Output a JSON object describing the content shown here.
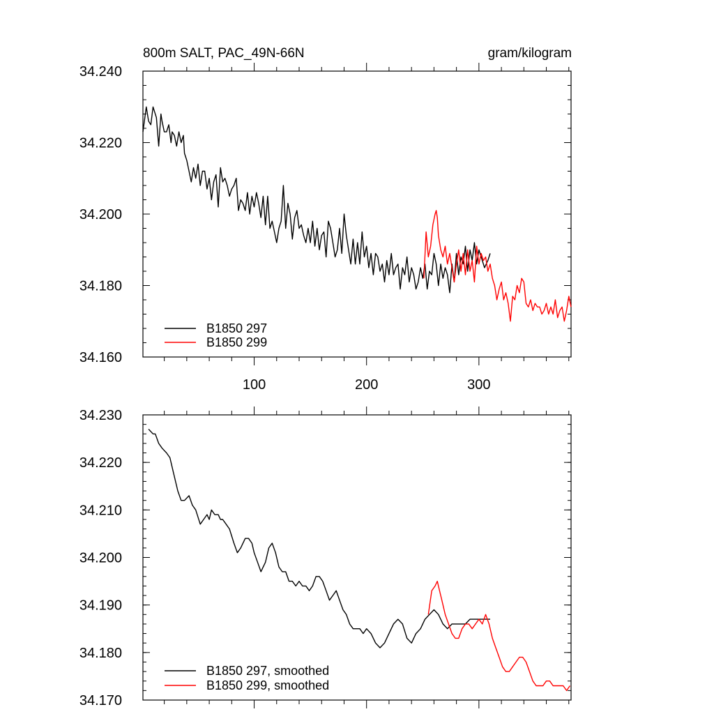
{
  "chart_data": [
    {
      "type": "line",
      "title_left": "800m SALT, PAC_49N-66N",
      "title_right": "gram/kilogram",
      "xlabel": "",
      "ylabel": "",
      "xlim": [
        1,
        382
      ],
      "ylim": [
        34.16,
        34.24
      ],
      "x_ticks": [
        100,
        200,
        300
      ],
      "x_tick_labels": [
        "100",
        "200",
        "300"
      ],
      "y_ticks": [
        34.16,
        34.18,
        34.2,
        34.22,
        34.24
      ],
      "y_tick_labels": [
        "34.160",
        "34.180",
        "34.200",
        "34.220",
        "34.240"
      ],
      "grid": false,
      "legend_position": "bottom-left",
      "series": [
        {
          "name": "B1850 297",
          "color": "#000000",
          "x": [
            1,
            4,
            6,
            8,
            10,
            11,
            13,
            15,
            17,
            18,
            20,
            22,
            24,
            26,
            27,
            29,
            31,
            33,
            35,
            37,
            38,
            40,
            42,
            44,
            46,
            48,
            50,
            52,
            54,
            56,
            58,
            60,
            62,
            64,
            66,
            68,
            70,
            72,
            74,
            76,
            78,
            80,
            82,
            84,
            86,
            88,
            90,
            92,
            94,
            96,
            98,
            100,
            102,
            104,
            106,
            108,
            110,
            112,
            114,
            116,
            118,
            120,
            122,
            124,
            126,
            128,
            130,
            132,
            134,
            136,
            138,
            140,
            142,
            144,
            146,
            148,
            150,
            152,
            154,
            156,
            158,
            160,
            162,
            164,
            166,
            168,
            170,
            172,
            174,
            176,
            178,
            180,
            182,
            184,
            186,
            188,
            190,
            192,
            194,
            196,
            198,
            200,
            202,
            204,
            206,
            208,
            210,
            212,
            214,
            216,
            218,
            220,
            222,
            224,
            226,
            228,
            230,
            232,
            234,
            236,
            238,
            240,
            242,
            244,
            246,
            248,
            250,
            252,
            254,
            256,
            258,
            260,
            262,
            264,
            266,
            268,
            270,
            272,
            274,
            276,
            278,
            280,
            282,
            284,
            286,
            288,
            290,
            292,
            294,
            296,
            298,
            300,
            302,
            305,
            308,
            310
          ],
          "y": [
            34.223,
            34.23,
            34.226,
            34.225,
            34.23,
            34.229,
            34.227,
            34.219,
            34.228,
            34.226,
            34.223,
            34.223,
            34.225,
            34.22,
            34.223,
            34.222,
            34.219,
            34.223,
            34.22,
            34.222,
            34.217,
            34.215,
            34.212,
            34.209,
            34.213,
            34.21,
            34.214,
            34.208,
            34.212,
            34.212,
            34.207,
            34.21,
            34.204,
            34.209,
            34.211,
            34.202,
            34.213,
            34.209,
            34.21,
            34.208,
            34.205,
            34.207,
            34.208,
            34.21,
            34.201,
            34.204,
            34.203,
            34.201,
            34.206,
            34.2,
            34.205,
            34.202,
            34.206,
            34.203,
            34.199,
            34.205,
            34.197,
            34.205,
            34.196,
            34.198,
            34.195,
            34.192,
            34.196,
            34.198,
            34.208,
            34.196,
            34.203,
            34.2,
            34.193,
            34.199,
            34.201,
            34.196,
            34.197,
            34.194,
            34.192,
            34.196,
            34.192,
            34.198,
            34.191,
            34.196,
            34.19,
            34.194,
            34.195,
            34.188,
            34.198,
            34.196,
            34.192,
            34.188,
            34.19,
            34.196,
            34.189,
            34.2,
            34.194,
            34.19,
            34.186,
            34.193,
            34.186,
            34.192,
            34.186,
            34.195,
            34.188,
            34.191,
            34.185,
            34.189,
            34.183,
            34.189,
            34.188,
            34.184,
            34.186,
            34.181,
            34.187,
            34.183,
            34.189,
            34.183,
            34.185,
            34.186,
            34.179,
            34.185,
            34.183,
            34.188,
            34.181,
            34.185,
            34.183,
            34.179,
            34.181,
            34.185,
            34.182,
            34.186,
            34.179,
            34.184,
            34.183,
            34.189,
            34.186,
            34.18,
            34.186,
            34.182,
            34.185,
            34.183,
            34.178,
            34.186,
            34.181,
            34.189,
            34.183,
            34.188,
            34.186,
            34.191,
            34.184,
            34.19,
            34.187,
            34.192,
            34.186,
            34.19,
            34.188,
            34.185,
            34.187,
            34.189
          ],
          "style": "solid"
        },
        {
          "name": "B1850 299",
          "color": "#ff0000",
          "x": [
            251,
            253,
            255,
            257,
            259,
            261,
            262,
            263,
            264,
            266,
            268,
            270,
            272,
            274,
            276,
            278,
            280,
            282,
            284,
            286,
            288,
            290,
            292,
            294,
            296,
            298,
            300,
            302,
            304,
            306,
            308,
            310,
            312,
            314,
            316,
            318,
            320,
            322,
            324,
            326,
            328,
            330,
            332,
            334,
            336,
            338,
            340,
            342,
            344,
            346,
            348,
            350,
            352,
            354,
            356,
            358,
            360,
            362,
            364,
            366,
            368,
            370,
            372,
            374,
            376,
            378,
            380,
            382
          ],
          "y": [
            34.182,
            34.195,
            34.188,
            34.191,
            34.197,
            34.2,
            34.201,
            34.199,
            34.194,
            34.19,
            34.188,
            34.191,
            34.186,
            34.189,
            34.185,
            34.181,
            34.186,
            34.19,
            34.184,
            34.189,
            34.183,
            34.19,
            34.184,
            34.187,
            34.181,
            34.191,
            34.186,
            34.189,
            34.187,
            34.188,
            34.184,
            34.186,
            34.182,
            34.18,
            34.176,
            34.179,
            34.181,
            34.176,
            34.178,
            34.175,
            34.17,
            34.177,
            34.176,
            34.18,
            34.178,
            34.182,
            34.181,
            34.175,
            34.174,
            34.176,
            34.173,
            34.175,
            34.174,
            34.174,
            34.172,
            34.173,
            34.175,
            34.172,
            34.174,
            34.172,
            34.176,
            34.171,
            34.173,
            34.174,
            34.17,
            34.173,
            34.177,
            34.174
          ],
          "style": "solid"
        }
      ]
    },
    {
      "type": "line",
      "xlabel": "",
      "ylabel": "",
      "xlim": [
        1,
        382
      ],
      "ylim": [
        34.17,
        34.23
      ],
      "x_ticks": [
        100,
        200,
        300
      ],
      "y_ticks": [
        34.17,
        34.18,
        34.19,
        34.2,
        34.21,
        34.22,
        34.23
      ],
      "y_tick_labels": [
        "34.170",
        "34.180",
        "34.190",
        "34.200",
        "34.210",
        "34.220",
        "34.230"
      ],
      "grid": false,
      "legend_position": "bottom-left",
      "series": [
        {
          "name": "B1850 297, smoothed",
          "color": "#000000",
          "x": [
            6,
            10,
            12,
            15,
            18,
            22,
            25,
            28,
            32,
            35,
            38,
            42,
            45,
            48,
            52,
            55,
            58,
            60,
            62,
            65,
            68,
            70,
            72,
            75,
            78,
            82,
            85,
            88,
            92,
            95,
            98,
            100,
            103,
            106,
            110,
            113,
            116,
            119,
            122,
            125,
            128,
            131,
            134,
            137,
            140,
            143,
            146,
            149,
            152,
            155,
            158,
            161,
            164,
            167,
            170,
            173,
            176,
            179,
            182,
            185,
            188,
            191,
            194,
            197,
            200,
            204,
            208,
            212,
            216,
            220,
            224,
            228,
            232,
            236,
            240,
            244,
            248,
            252,
            256,
            260,
            264,
            268,
            272,
            276,
            280,
            284,
            288,
            292,
            296,
            300,
            304,
            308,
            310
          ],
          "y": [
            34.227,
            34.226,
            34.226,
            34.224,
            34.223,
            34.222,
            34.221,
            34.218,
            34.214,
            34.212,
            34.212,
            34.213,
            34.211,
            34.21,
            34.207,
            34.208,
            34.209,
            34.208,
            34.21,
            34.209,
            34.209,
            34.208,
            34.208,
            34.207,
            34.206,
            34.203,
            34.201,
            34.202,
            34.204,
            34.204,
            34.203,
            34.201,
            34.199,
            34.197,
            34.199,
            34.202,
            34.203,
            34.201,
            34.198,
            34.197,
            34.197,
            34.195,
            34.195,
            34.194,
            34.195,
            34.194,
            34.194,
            34.193,
            34.194,
            34.196,
            34.196,
            34.195,
            34.193,
            34.191,
            34.192,
            34.193,
            34.191,
            34.189,
            34.188,
            34.186,
            34.185,
            34.185,
            34.185,
            34.184,
            34.185,
            34.184,
            34.182,
            34.181,
            34.182,
            34.184,
            34.186,
            34.187,
            34.186,
            34.183,
            34.182,
            34.184,
            34.185,
            34.187,
            34.188,
            34.189,
            34.188,
            34.186,
            34.185,
            34.186,
            34.186,
            34.186,
            34.186,
            34.187,
            34.187,
            34.187,
            34.187,
            34.187,
            34.187
          ],
          "style": "solid"
        },
        {
          "name": "B1850 299, smoothed",
          "color": "#ff0000",
          "x": [
            255,
            258,
            261,
            263,
            265,
            267,
            270,
            273,
            276,
            279,
            282,
            285,
            288,
            291,
            294,
            297,
            300,
            303,
            306,
            309,
            312,
            315,
            318,
            321,
            324,
            327,
            330,
            333,
            336,
            339,
            342,
            345,
            348,
            351,
            354,
            357,
            360,
            363,
            366,
            369,
            372,
            375,
            378,
            381
          ],
          "y": [
            34.188,
            34.193,
            34.194,
            34.195,
            34.193,
            34.191,
            34.188,
            34.186,
            34.184,
            34.183,
            34.183,
            34.185,
            34.186,
            34.186,
            34.185,
            34.186,
            34.187,
            34.186,
            34.188,
            34.186,
            34.183,
            34.181,
            34.179,
            34.177,
            34.176,
            34.176,
            34.177,
            34.178,
            34.179,
            34.179,
            34.178,
            34.176,
            34.174,
            34.173,
            34.173,
            34.173,
            34.174,
            34.174,
            34.173,
            34.173,
            34.173,
            34.173,
            34.172,
            34.173
          ],
          "style": "solid"
        }
      ]
    }
  ]
}
